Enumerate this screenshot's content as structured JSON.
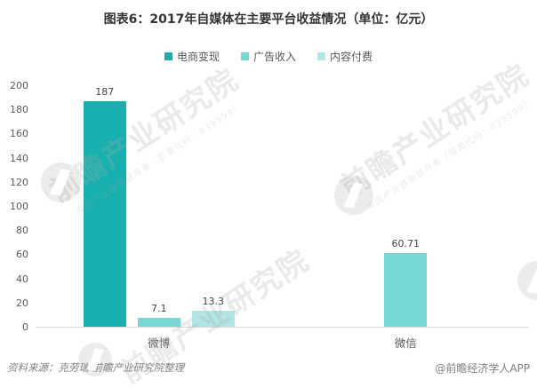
{
  "chart_data": {
    "type": "bar",
    "title": "图表6：2017年自媒体在主要平台收益情况（单位：亿元）",
    "unit_note": "单位：亿元",
    "categories": [
      "微博",
      "微信"
    ],
    "series": [
      {
        "name": "电商变现",
        "color": "#17b0ae",
        "values": [
          187,
          null
        ]
      },
      {
        "name": "广告收入",
        "color": "#76d7d3",
        "values": [
          7.1,
          60.71
        ]
      },
      {
        "name": "内容付费",
        "color": "#b0e6e4",
        "values": [
          13.3,
          null
        ]
      }
    ],
    "ylim": [
      0,
      200
    ],
    "ytick_step": 20,
    "yticks": [
      0,
      20,
      40,
      60,
      80,
      100,
      120,
      140,
      160,
      180,
      200
    ],
    "grid": false,
    "legend_position": "top",
    "value_labels": true,
    "xlabel": "",
    "ylabel": ""
  },
  "footer": {
    "source": "资料来源：克劳瑞  前瞻产业研究院整理",
    "credit": "@前瞻经济学人APP"
  },
  "watermark": {
    "brand": "前瞻产业研究院",
    "subtitle": "中国产业咨询领导者（股票代码：839599）"
  },
  "colors": {
    "axis_line": "#d9d9d9",
    "tick_text": "#595959",
    "title_text": "#333333",
    "footer_text": "#7f7f7f"
  }
}
